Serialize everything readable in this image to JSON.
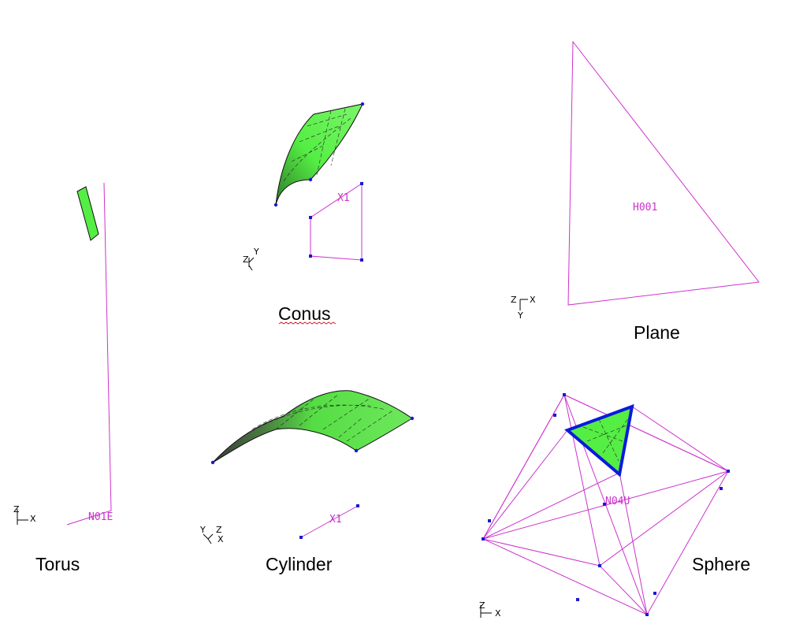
{
  "captions": {
    "torus": "Torus",
    "conus": "Conus",
    "plane": "Plane",
    "cylinder": "Cylinder",
    "sphere": "Sphere"
  },
  "curve_labels": {
    "torus": "N01E",
    "conus": "X1",
    "plane": "H001",
    "cylinder": "X1",
    "sphere": "N04U"
  },
  "triad": {
    "x": "X",
    "y": "Y",
    "z": "Z"
  },
  "colors": {
    "surface": "#55ee44",
    "wireframe": "#cc33cc",
    "node": "#1a1acc",
    "edge_highlight": "#0a1adc"
  }
}
